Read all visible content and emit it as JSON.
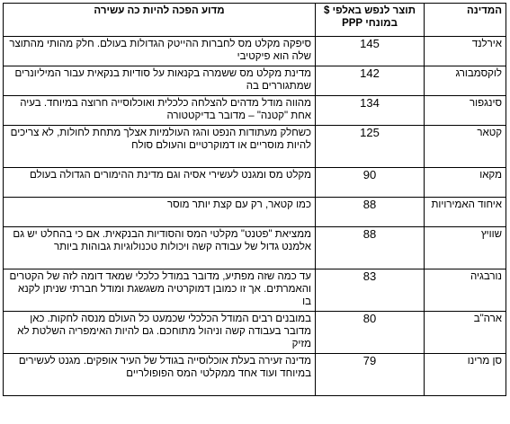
{
  "table": {
    "headers": {
      "country": "המדינה",
      "gdp": "תוצר לנפש באלפי $ במונחי PPP",
      "reason": "מדוע הפכה להיות כה עשירה"
    },
    "rows": [
      {
        "country": "אירלנד",
        "gdp": "145",
        "reason": "סיפקה מקלט מס לחברות ההייטק הגדולות בעולם. חלק מהותי מהתוצר שלה הוא פיקטיבי"
      },
      {
        "country": "לוקסמבורג",
        "gdp": "142",
        "reason": "מדינת מקלט מס ששמרה בקנאות על סודיות בנקאית עבור המיליונרים שמתגוררים בה"
      },
      {
        "country": "סינגפור",
        "gdp": "134",
        "reason": "מהווה מודל מדהים להצלחה כלכלית ואוכלוסייה חרוצה במיוחד. בעיה אחת \"קטנה\" – מדובר בדיקטטורה"
      },
      {
        "country": "קטאר",
        "gdp": "125",
        "reason": "כשחלק מעתודות הנפט והגז העולמיות אצלך מתחת לחולות, לא צריכים להיות מוסריים או דמוקרטיים והעולם סולח"
      },
      {
        "country": "מקאו",
        "gdp": "90",
        "reason": "מקלט מס ומגנט לעשירי אסיה וגם מדינת ההימורים הגדולה בעולם"
      },
      {
        "country": "איחוד האמירויות",
        "gdp": "88",
        "reason": "כמו קטאר, רק עם קצת יותר מוסר"
      },
      {
        "country": "שוויץ",
        "gdp": "88",
        "reason": "ממציאת \"פטנט\" מקלטי המס והסודיות הבנקאית. אם כי בהחלט יש גם אלמנט גדול של עבודה קשה ויכולות טכנולוגיות גבוהות ביותר"
      },
      {
        "country": "נורבגיה",
        "gdp": "83",
        "reason": "עד כמה שזה מפתיע, מדובר במודל כלכלי שמאד דומה לזה של הקטרים והאמרתים. אך זו כמובן דמוקרטיה משגשגת ומודל חברתי שניתן לקנא בו"
      },
      {
        "country": "ארה\"ב",
        "gdp": "80",
        "reason": "במובנים רבים המודל הכלכלי שכמעט כל העולם מנסה לחקות. כאן מדובר בעבודה קשה וניהול מתוחכם. גם להיות האימפריה השלטת לא מזיק"
      },
      {
        "country": "סן מרינו",
        "gdp": "79",
        "reason": "מדינה זעירה בעלת אוכלוסייה בגודל של העיר אופקים. מגנט לעשירים במיוחד ועוד אחד ממקלטי המס הפופולריים"
      }
    ]
  }
}
